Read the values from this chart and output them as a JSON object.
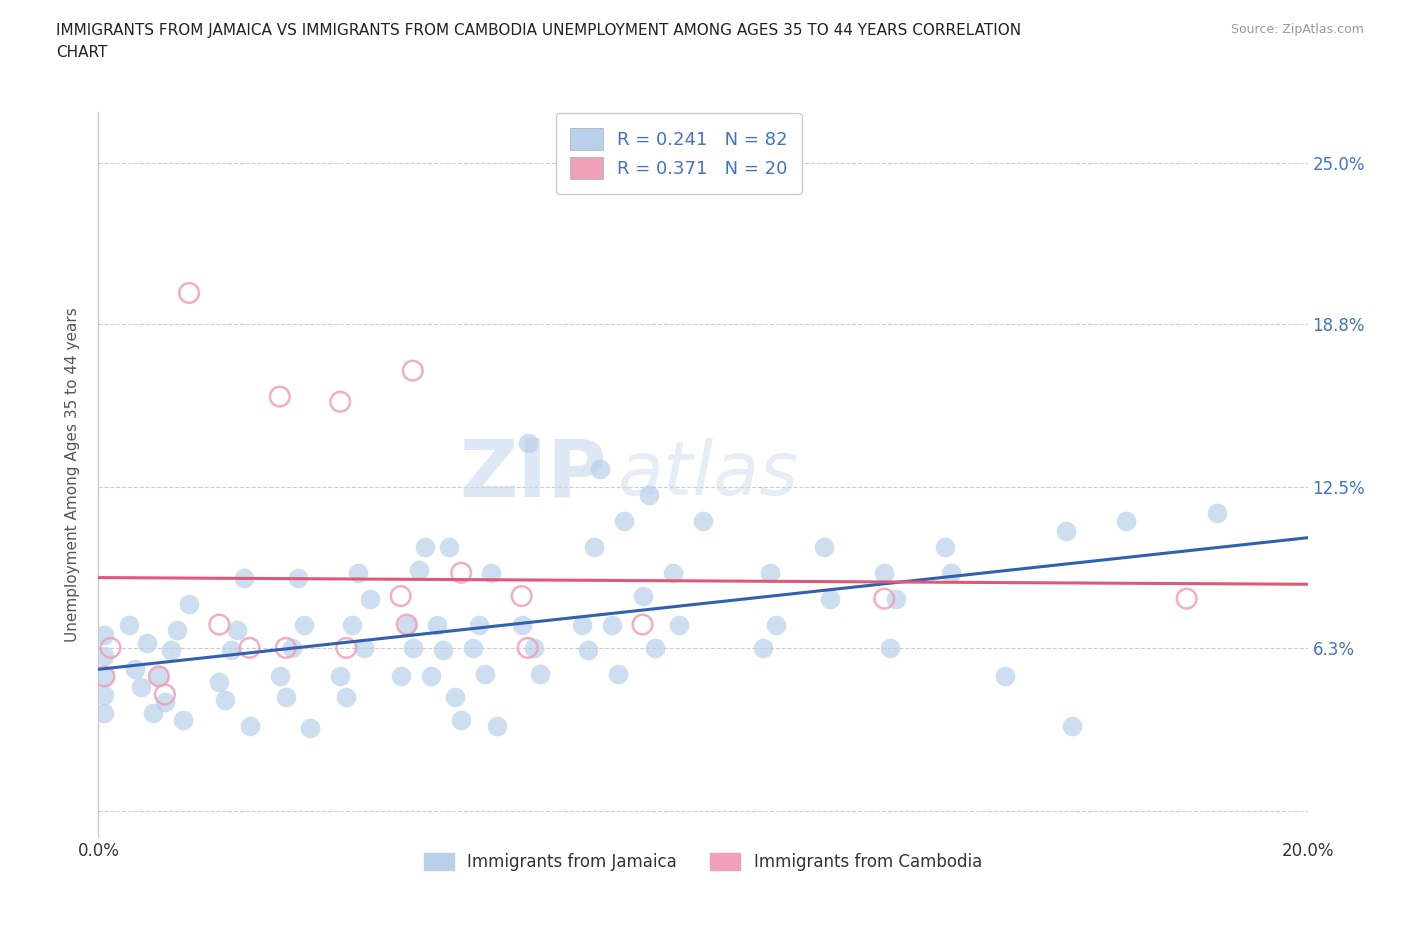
{
  "title_line1": "IMMIGRANTS FROM JAMAICA VS IMMIGRANTS FROM CAMBODIA UNEMPLOYMENT AMONG AGES 35 TO 44 YEARS CORRELATION",
  "title_line2": "CHART",
  "source": "Source: ZipAtlas.com",
  "ylabel": "Unemployment Among Ages 35 to 44 years",
  "xlim": [
    0.0,
    0.2
  ],
  "ylim": [
    -0.01,
    0.27
  ],
  "plot_ylim": [
    -0.01,
    0.27
  ],
  "xtick_positions": [
    0.0,
    0.05,
    0.1,
    0.15,
    0.2
  ],
  "xtick_labels": [
    "0.0%",
    "",
    "",
    "",
    "20.0%"
  ],
  "ytick_positions": [
    0.0,
    0.063,
    0.125,
    0.188,
    0.25
  ],
  "ytick_labels": [
    "",
    "6.3%",
    "12.5%",
    "18.8%",
    "25.0%"
  ],
  "jamaica_fill_color": "#b8d0ea",
  "jamaica_edge_color": "#b8d0ea",
  "cambodia_fill_color": "none",
  "cambodia_edge_color": "#f0a0b8",
  "jamaica_line_color": "#3060b0",
  "cambodia_line_color": "#e05878",
  "jamaica_R": 0.241,
  "jamaica_N": 82,
  "cambodia_R": 0.371,
  "cambodia_N": 20,
  "watermark_part1": "ZIP",
  "watermark_part2": "atlas",
  "background_color": "#ffffff",
  "legend_text_color": "#4472c4",
  "grid_color": "#cccccc",
  "left_tick_labels": [
    "",
    "",
    "",
    "",
    ""
  ],
  "jamaica_scatter": [
    [
      0.001,
      0.052
    ],
    [
      0.001,
      0.045
    ],
    [
      0.001,
      0.038
    ],
    [
      0.001,
      0.06
    ],
    [
      0.001,
      0.068
    ],
    [
      0.005,
      0.072
    ],
    [
      0.006,
      0.055
    ],
    [
      0.007,
      0.048
    ],
    [
      0.008,
      0.065
    ],
    [
      0.009,
      0.038
    ],
    [
      0.01,
      0.052
    ],
    [
      0.011,
      0.042
    ],
    [
      0.012,
      0.062
    ],
    [
      0.013,
      0.07
    ],
    [
      0.014,
      0.035
    ],
    [
      0.015,
      0.08
    ],
    [
      0.02,
      0.05
    ],
    [
      0.021,
      0.043
    ],
    [
      0.022,
      0.062
    ],
    [
      0.023,
      0.07
    ],
    [
      0.024,
      0.09
    ],
    [
      0.025,
      0.033
    ],
    [
      0.03,
      0.052
    ],
    [
      0.031,
      0.044
    ],
    [
      0.032,
      0.063
    ],
    [
      0.033,
      0.09
    ],
    [
      0.034,
      0.072
    ],
    [
      0.035,
      0.032
    ],
    [
      0.04,
      0.052
    ],
    [
      0.041,
      0.044
    ],
    [
      0.042,
      0.072
    ],
    [
      0.043,
      0.092
    ],
    [
      0.044,
      0.063
    ],
    [
      0.045,
      0.082
    ],
    [
      0.05,
      0.052
    ],
    [
      0.051,
      0.072
    ],
    [
      0.052,
      0.063
    ],
    [
      0.053,
      0.093
    ],
    [
      0.054,
      0.102
    ],
    [
      0.055,
      0.052
    ],
    [
      0.056,
      0.072
    ],
    [
      0.057,
      0.062
    ],
    [
      0.058,
      0.102
    ],
    [
      0.059,
      0.044
    ],
    [
      0.06,
      0.035
    ],
    [
      0.062,
      0.063
    ],
    [
      0.063,
      0.072
    ],
    [
      0.064,
      0.053
    ],
    [
      0.065,
      0.092
    ],
    [
      0.066,
      0.033
    ],
    [
      0.07,
      0.072
    ],
    [
      0.071,
      0.142
    ],
    [
      0.072,
      0.063
    ],
    [
      0.073,
      0.053
    ],
    [
      0.08,
      0.072
    ],
    [
      0.081,
      0.062
    ],
    [
      0.082,
      0.102
    ],
    [
      0.083,
      0.132
    ],
    [
      0.085,
      0.072
    ],
    [
      0.086,
      0.053
    ],
    [
      0.087,
      0.112
    ],
    [
      0.09,
      0.083
    ],
    [
      0.091,
      0.122
    ],
    [
      0.092,
      0.063
    ],
    [
      0.095,
      0.092
    ],
    [
      0.096,
      0.072
    ],
    [
      0.1,
      0.112
    ],
    [
      0.11,
      0.063
    ],
    [
      0.111,
      0.092
    ],
    [
      0.112,
      0.072
    ],
    [
      0.12,
      0.102
    ],
    [
      0.121,
      0.082
    ],
    [
      0.13,
      0.092
    ],
    [
      0.131,
      0.063
    ],
    [
      0.132,
      0.082
    ],
    [
      0.14,
      0.102
    ],
    [
      0.141,
      0.092
    ],
    [
      0.15,
      0.052
    ],
    [
      0.16,
      0.108
    ],
    [
      0.161,
      0.033
    ],
    [
      0.17,
      0.112
    ],
    [
      0.185,
      0.115
    ]
  ],
  "cambodia_scatter": [
    [
      0.001,
      0.052
    ],
    [
      0.002,
      0.063
    ],
    [
      0.01,
      0.052
    ],
    [
      0.011,
      0.045
    ],
    [
      0.015,
      0.2
    ],
    [
      0.02,
      0.072
    ],
    [
      0.025,
      0.063
    ],
    [
      0.03,
      0.16
    ],
    [
      0.031,
      0.063
    ],
    [
      0.04,
      0.158
    ],
    [
      0.041,
      0.063
    ],
    [
      0.05,
      0.083
    ],
    [
      0.051,
      0.072
    ],
    [
      0.052,
      0.17
    ],
    [
      0.06,
      0.092
    ],
    [
      0.07,
      0.083
    ],
    [
      0.071,
      0.063
    ],
    [
      0.09,
      0.072
    ],
    [
      0.13,
      0.082
    ],
    [
      0.18,
      0.082
    ]
  ]
}
